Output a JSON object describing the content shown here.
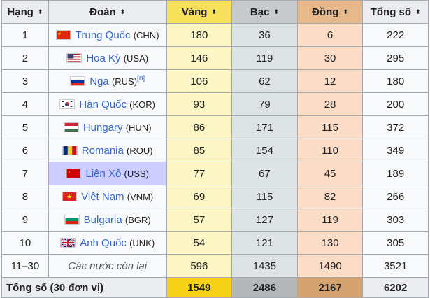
{
  "headers": {
    "rank": "Hạng",
    "team": "Đoàn",
    "gold": "Vàng",
    "silver": "Bạc",
    "bronze": "Đồng",
    "total": "Tổng số",
    "sort_glyph": "⬍"
  },
  "rows": [
    {
      "rank": "1",
      "country": "Trung Quốc",
      "code": "(CHN)",
      "note": "",
      "gold": "180",
      "silver": "36",
      "bronze": "6",
      "total": "222",
      "flag": "china-flag-icon"
    },
    {
      "rank": "2",
      "country": "Hoa Kỳ",
      "code": "(USA)",
      "note": "",
      "gold": "146",
      "silver": "119",
      "bronze": "30",
      "total": "295",
      "flag": "usa-flag-icon"
    },
    {
      "rank": "3",
      "country": "Nga",
      "code": "(RUS)",
      "note": "[8]",
      "gold": "106",
      "silver": "62",
      "bronze": "12",
      "total": "180",
      "flag": "russia-flag-icon"
    },
    {
      "rank": "4",
      "country": "Hàn Quốc",
      "code": "(KOR)",
      "note": "",
      "gold": "93",
      "silver": "79",
      "bronze": "28",
      "total": "200",
      "flag": "korea-flag-icon"
    },
    {
      "rank": "5",
      "country": "Hungary",
      "code": "(HUN)",
      "note": "",
      "gold": "86",
      "silver": "171",
      "bronze": "115",
      "total": "372",
      "flag": "hungary-flag-icon"
    },
    {
      "rank": "6",
      "country": "Romania",
      "code": "(ROU)",
      "note": "",
      "gold": "85",
      "silver": "154",
      "bronze": "110",
      "total": "349",
      "flag": "romania-flag-icon"
    },
    {
      "rank": "7",
      "country": "Liên Xô",
      "code": "(USS)",
      "note": "",
      "gold": "77",
      "silver": "67",
      "bronze": "45",
      "total": "189",
      "flag": "ussr-flag-icon"
    },
    {
      "rank": "8",
      "country": "Việt Nam",
      "code": "(VNM)",
      "note": "",
      "gold": "69",
      "silver": "115",
      "bronze": "82",
      "total": "266",
      "flag": "vietnam-flag-icon"
    },
    {
      "rank": "9",
      "country": "Bulgaria",
      "code": "(BGR)",
      "note": "",
      "gold": "57",
      "silver": "127",
      "bronze": "119",
      "total": "303",
      "flag": "bulgaria-flag-icon"
    },
    {
      "rank": "10",
      "country": "Anh Quốc",
      "code": "(UNK)",
      "note": "",
      "gold": "54",
      "silver": "121",
      "bronze": "130",
      "total": "305",
      "flag": "uk-flag-icon"
    }
  ],
  "rest": {
    "rank": "11–30",
    "label": "Các nước còn lại",
    "gold": "596",
    "silver": "1435",
    "bronze": "1490",
    "total": "3521"
  },
  "footer": {
    "label": "Tổng số (30 đơn vị)",
    "gold": "1549",
    "silver": "2486",
    "bronze": "2167",
    "total": "6202"
  }
}
